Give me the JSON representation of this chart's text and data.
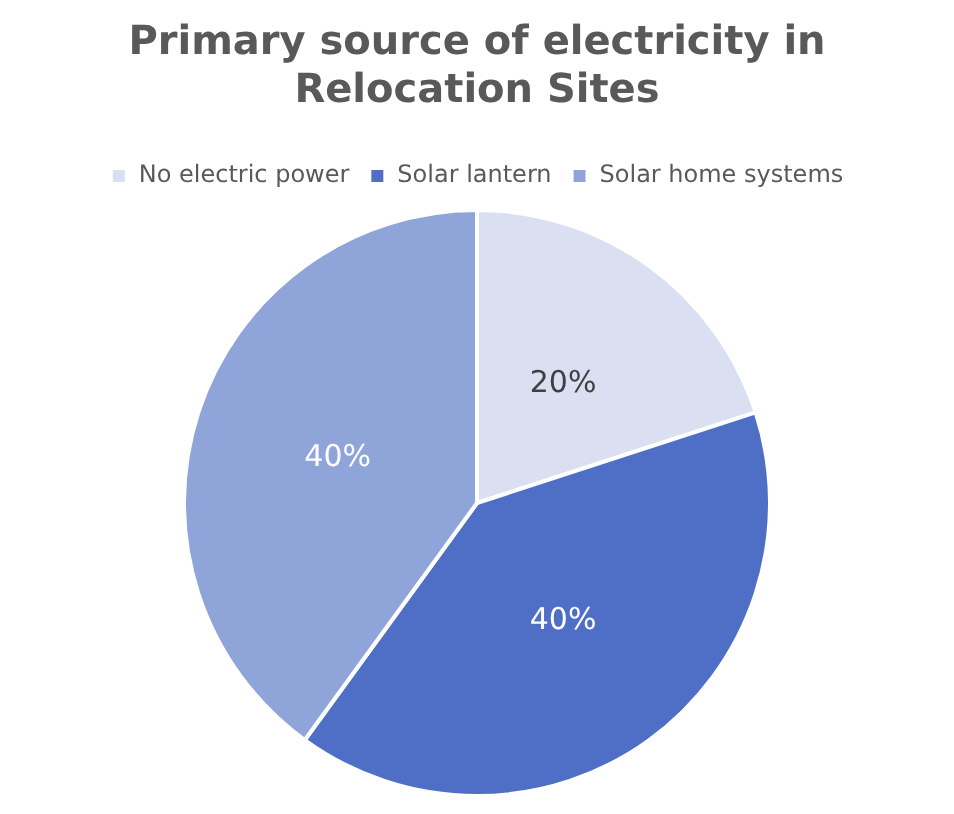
{
  "chart_data": {
    "type": "pie",
    "title": "Primary source of electricity in Relocation Sites",
    "categories": [
      "No electric power",
      "Solar lantern",
      "Solar home systems"
    ],
    "values": [
      20,
      40,
      40
    ],
    "colors": [
      "#dae0f2",
      "#4f6fc6",
      "#8fa5da"
    ],
    "value_labels": [
      "20%",
      "40%",
      "40%"
    ],
    "legend": "top"
  }
}
